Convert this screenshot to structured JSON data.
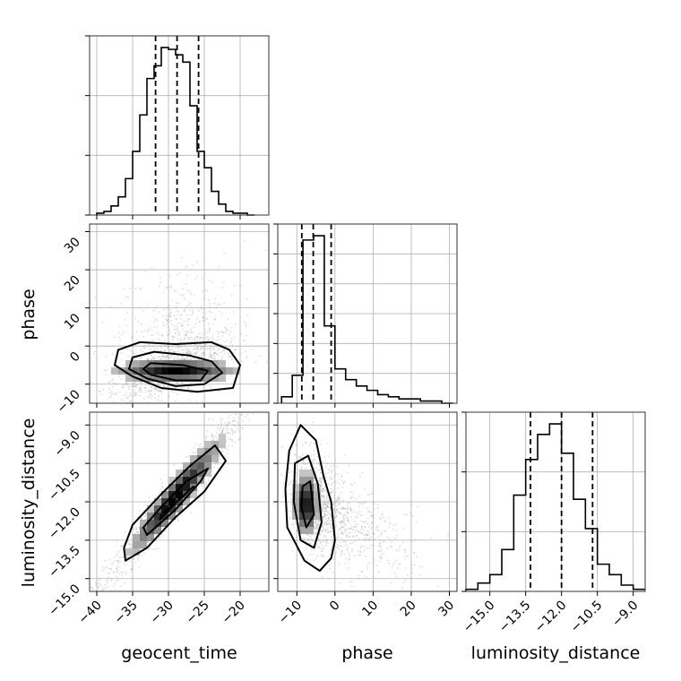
{
  "figure": {
    "type": "corner_plot"
  },
  "chart_data": [
    {
      "type": "histogram",
      "panel": "geocent_time-marginal",
      "param": "geocent_time",
      "bins": [
        -40,
        -39,
        -38,
        -37,
        -36,
        -35,
        -34,
        -33,
        -32,
        -31,
        -30,
        -29,
        -28,
        -27,
        -26,
        -25,
        -24,
        -23,
        -22,
        -21,
        -20,
        -19,
        -18
      ],
      "values": [
        1,
        2,
        5,
        10,
        20,
        35,
        55,
        75,
        82,
        92,
        91,
        88,
        84,
        60,
        35,
        26,
        13,
        6,
        2,
        1,
        1,
        0
      ],
      "quantiles": [
        -31.8,
        -28.8,
        -25.8
      ],
      "xlim": [
        -41,
        -16
      ],
      "grid": true
    },
    {
      "type": "histogram",
      "panel": "phase-marginal",
      "param": "phase",
      "bins": [
        -14,
        -11.2,
        -8.4,
        -5.6,
        -2.8,
        0,
        2.8,
        5.6,
        8.4,
        11.2,
        14,
        16.8,
        19.8,
        22.4,
        25.2,
        28,
        31
      ],
      "values": [
        3,
        13,
        76,
        78,
        36,
        16,
        11,
        8,
        6,
        4,
        3,
        2,
        2,
        1,
        1,
        0
      ],
      "quantiles": [
        -8.7,
        -5.7,
        -1.0
      ],
      "xlim": [
        -15,
        32
      ],
      "grid": true
    },
    {
      "type": "histogram",
      "panel": "luminosity_distance-marginal",
      "param": "luminosity_distance",
      "bins": [
        -16,
        -15.5,
        -15,
        -14.5,
        -14,
        -13.5,
        -13,
        -12.5,
        -12,
        -11.5,
        -11,
        -10.5,
        -10,
        -9.5,
        -9,
        -8.5
      ],
      "values": [
        1,
        4,
        8,
        20,
        46,
        63,
        75,
        80,
        66,
        44,
        30,
        13,
        8,
        3,
        1
      ],
      "quantiles": [
        -13.3,
        -12.0,
        -10.7
      ],
      "xlim": [
        -16,
        -8.5
      ],
      "grid": true
    },
    {
      "type": "scatter_density",
      "panel": "geocent_time-vs-phase",
      "x": "geocent_time",
      "y": "phase",
      "xlim": [
        -41,
        -16
      ],
      "ylim": [
        -15,
        32
      ],
      "center": [
        -29,
        -6
      ],
      "contours": 3,
      "grid": true
    },
    {
      "type": "scatter_density",
      "panel": "geocent_time-vs-luminosity_distance",
      "x": "geocent_time",
      "y": "luminosity_distance",
      "xlim": [
        -41,
        -16
      ],
      "ylim": [
        -15.5,
        -8.5
      ],
      "center": [
        -29,
        -11.8
      ],
      "contours": 3,
      "grid": true
    },
    {
      "type": "scatter_density",
      "panel": "phase-vs-luminosity_distance",
      "x": "phase",
      "y": "luminosity_distance",
      "xlim": [
        -15,
        32
      ],
      "ylim": [
        -15.5,
        -8.5
      ],
      "center": [
        -7,
        -12
      ],
      "contours": 3,
      "grid": true
    }
  ],
  "axes": {
    "geocent_time": {
      "label": "geocent_time",
      "ticks": [
        -40,
        -35,
        -30,
        -25,
        -20
      ],
      "tick_labels": [
        "−40",
        "−35",
        "−30",
        "−25",
        "−20"
      ]
    },
    "phase_x": {
      "label": "phase",
      "ticks": [
        -10,
        0,
        10,
        20,
        30
      ],
      "tick_labels": [
        "−10",
        "0",
        "10",
        "20",
        "30"
      ]
    },
    "phase_y": {
      "label": "phase",
      "ticks": [
        -10,
        0,
        10,
        20,
        30
      ],
      "tick_labels": [
        "−10",
        "0",
        "10",
        "20",
        "30"
      ]
    },
    "luminosity_distance_x": {
      "label": "luminosity_distance",
      "ticks": [
        -15,
        -13.5,
        -12,
        -10.5,
        -9
      ],
      "tick_labels": [
        "−15.0",
        "−13.5",
        "−12.0",
        "−10.5",
        "−9.0"
      ]
    },
    "luminosity_distance_y": {
      "label": "luminosity_distance",
      "ticks": [
        -15,
        -13.5,
        -12,
        -10.5,
        -9
      ],
      "tick_labels": [
        "−15.0",
        "−13.5",
        "−12.0",
        "−10.5",
        "−9.0"
      ]
    }
  },
  "colors": {
    "ink": "#000000",
    "grid": "#b0b0b0",
    "points": "#9a9a9a"
  }
}
